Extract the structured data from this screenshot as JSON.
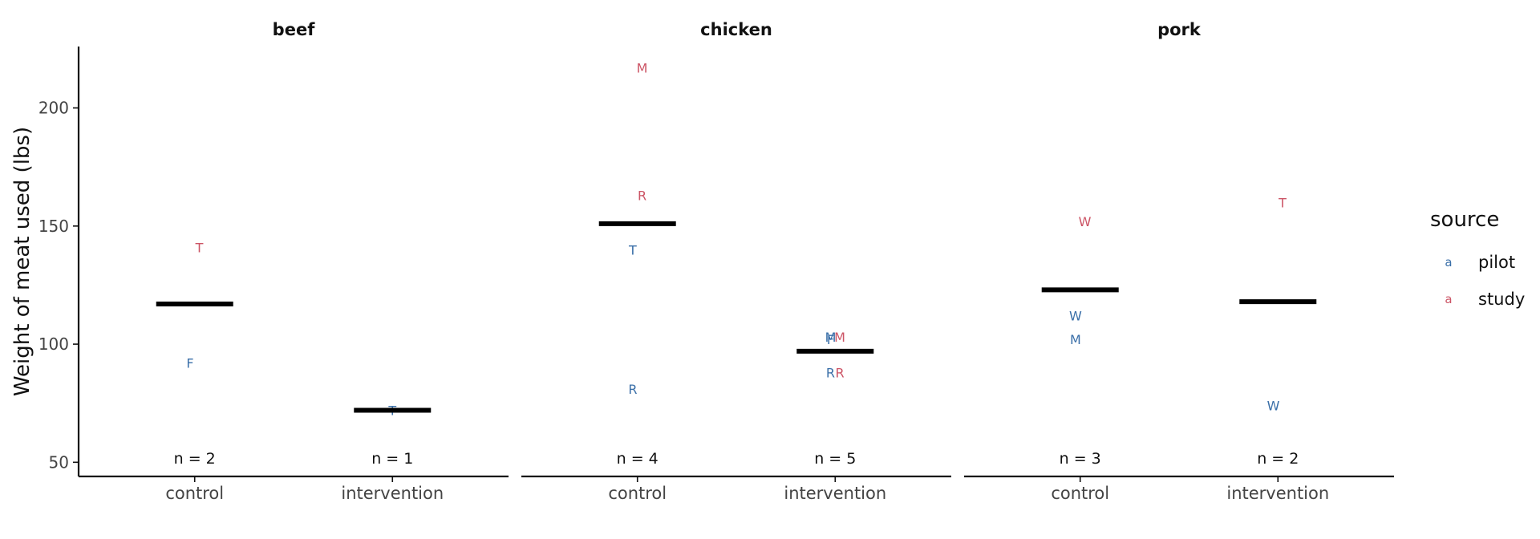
{
  "chart_data": {
    "type": "scatter",
    "ylabel": "Weight of meat used (lbs)",
    "ylim": [
      44,
      226
    ],
    "yticks": [
      50,
      100,
      150,
      200
    ],
    "categories": [
      "control",
      "intervention"
    ],
    "colors": {
      "pilot": "#3a6fa8",
      "study": "#cc5566"
    },
    "legend": {
      "title": "source",
      "placement": "right",
      "key_glyph": "a",
      "entries": [
        {
          "key": "pilot",
          "label": "pilot"
        },
        {
          "key": "study",
          "label": "study"
        }
      ]
    },
    "facets": [
      {
        "title": "beef",
        "groups": [
          {
            "category": "control",
            "mean": 117,
            "n_label": "n = 2",
            "points": [
              {
                "label": "T",
                "source": "study",
                "y": 141,
                "dx": 0.1
              },
              {
                "label": "F",
                "source": "pilot",
                "y": 92,
                "dx": -0.1
              }
            ]
          },
          {
            "category": "intervention",
            "mean": 72,
            "n_label": "n = 1",
            "points": [
              {
                "label": "T",
                "source": "pilot",
                "y": 72,
                "dx": 0
              }
            ]
          }
        ]
      },
      {
        "title": "chicken",
        "groups": [
          {
            "category": "control",
            "mean": 151,
            "n_label": "n = 4",
            "points": [
              {
                "label": "M",
                "source": "study",
                "y": 217,
                "dx": 0.1
              },
              {
                "label": "R",
                "source": "study",
                "y": 163,
                "dx": 0.1
              },
              {
                "label": "T",
                "source": "pilot",
                "y": 140,
                "dx": -0.1
              },
              {
                "label": "R",
                "source": "pilot",
                "y": 81,
                "dx": -0.1
              }
            ]
          },
          {
            "category": "intervention",
            "mean": 97,
            "n_label": "n = 5",
            "points": [
              {
                "label": "M",
                "source": "pilot",
                "y": 103,
                "dx": -0.1
              },
              {
                "label": "F",
                "source": "pilot",
                "y": 102,
                "dx": -0.1
              },
              {
                "label": "M",
                "source": "study",
                "y": 103,
                "dx": 0.1
              },
              {
                "label": "R",
                "source": "pilot",
                "y": 88,
                "dx": -0.1
              },
              {
                "label": "R",
                "source": "study",
                "y": 88,
                "dx": 0.1
              }
            ]
          }
        ]
      },
      {
        "title": "pork",
        "groups": [
          {
            "category": "control",
            "mean": 123,
            "n_label": "n = 3",
            "points": [
              {
                "label": "W",
                "source": "study",
                "y": 152,
                "dx": 0.1
              },
              {
                "label": "W",
                "source": "pilot",
                "y": 112,
                "dx": -0.1
              },
              {
                "label": "M",
                "source": "pilot",
                "y": 102,
                "dx": -0.1
              }
            ]
          },
          {
            "category": "intervention",
            "mean": 118,
            "n_label": "n = 2",
            "points": [
              {
                "label": "T",
                "source": "study",
                "y": 160,
                "dx": 0.1
              },
              {
                "label": "W",
                "source": "pilot",
                "y": 74,
                "dx": -0.1
              }
            ]
          }
        ]
      }
    ]
  }
}
